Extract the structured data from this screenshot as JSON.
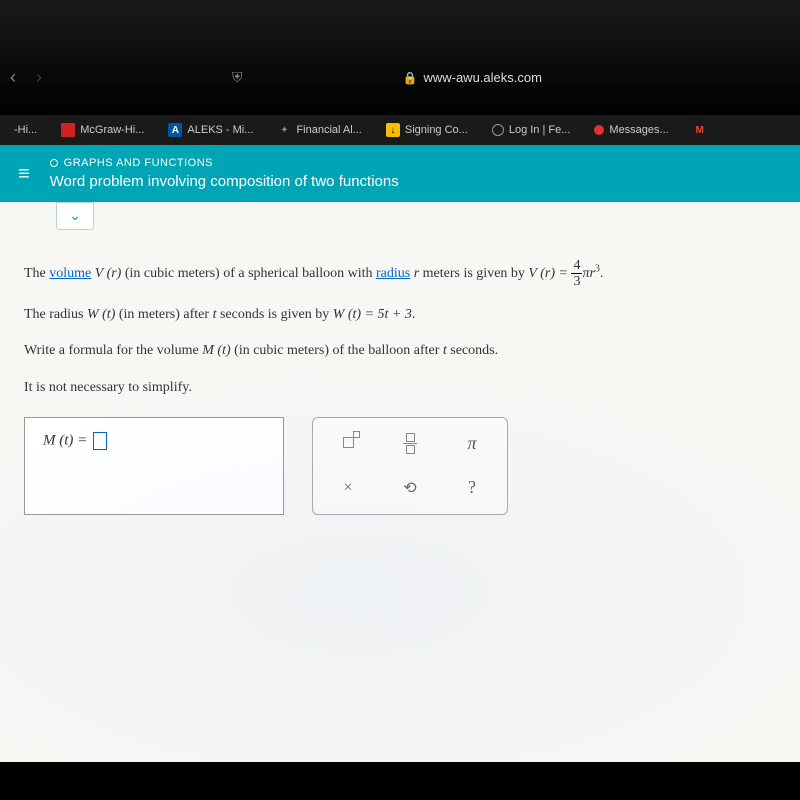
{
  "browser": {
    "url_host": "www-awu.aleks.com",
    "bookmarks": [
      {
        "label": "-Hi...",
        "icon": ""
      },
      {
        "label": "McGraw-Hi...",
        "icon": "red",
        "icon_text": ""
      },
      {
        "label": "ALEKS - Mi...",
        "icon": "blue",
        "icon_text": "A"
      },
      {
        "label": "Financial Al...",
        "icon": "star",
        "icon_text": "✦"
      },
      {
        "label": "Signing Co...",
        "icon": "dl",
        "icon_text": "↓"
      },
      {
        "label": "Log In | Fe...",
        "icon": "circle-w",
        "icon_text": ""
      },
      {
        "label": "Messages...",
        "icon": "circle-r",
        "icon_text": ""
      },
      {
        "label": "",
        "icon": "gmail",
        "icon_text": "M"
      }
    ]
  },
  "header": {
    "category": "GRAPHS AND FUNCTIONS",
    "title": "Word problem involving composition of two functions"
  },
  "problem": {
    "line1_pre": "The ",
    "volume_link": "volume",
    "line1_mid": " (in cubic meters) of a spherical balloon with ",
    "radius_link": "radius",
    "line1_post": " meters is given by ",
    "vr": "V (r)",
    "r_var": "r",
    "formula_v_lhs": "V (r) = ",
    "frac_num": "4",
    "frac_den": "3",
    "pi": "π",
    "r_cubed_base": "r",
    "r_cubed_exp": "3",
    "line2_pre": "The radius ",
    "wt": "W (t)",
    "line2_mid1": " (in meters) after ",
    "t_var": "t",
    "line2_mid2": " seconds is given by ",
    "formula_w": "W (t) = 5t + 3",
    "line3_pre": "Write a formula for the volume ",
    "mt": "M (t)",
    "line3_mid": " (in cubic meters) of the balloon after ",
    "line3_post": " seconds.",
    "line4": "It is not necessary to simplify.",
    "answer_lhs": "M (t) = "
  },
  "tools": {
    "pi": "π",
    "clear": "×",
    "reset": "⟲",
    "help": "?"
  }
}
